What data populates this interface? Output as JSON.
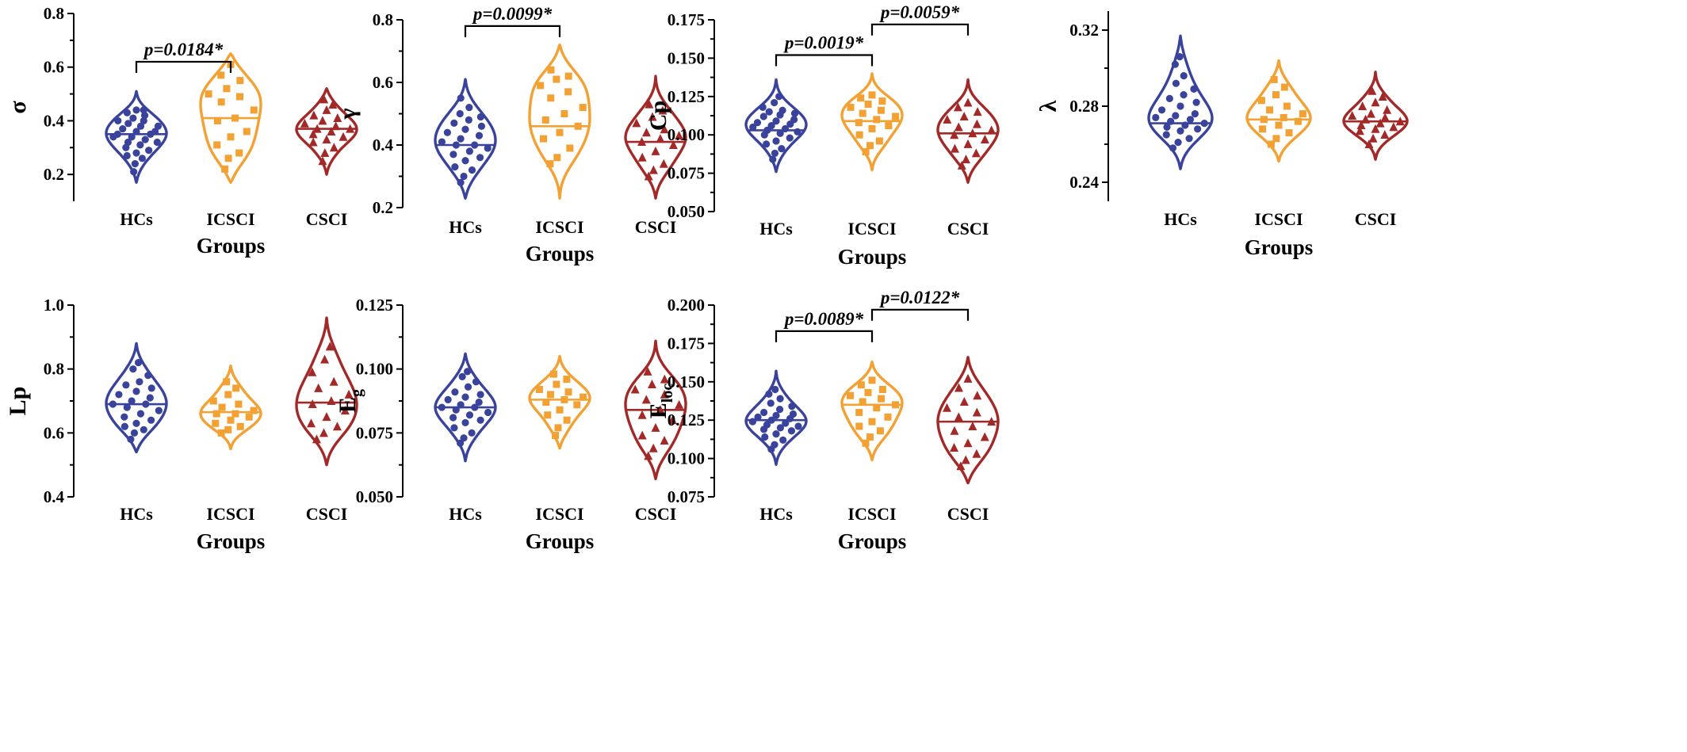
{
  "colors": {
    "HCs": "#39439b",
    "ICSCI": "#f2a132",
    "CSCI": "#a32828"
  },
  "markers": {
    "HCs": "circle",
    "ICSCI": "square",
    "CSCI": "triangle"
  },
  "chart_data": [
    {
      "id": "sigma",
      "type": "violin",
      "ylabel": "σ",
      "xlabel": "Groups",
      "categories": [
        "HCs",
        "ICSCI",
        "CSCI"
      ],
      "ylim": [
        0.1,
        0.8
      ],
      "yticks": [
        "0.2",
        "0.4",
        "0.6",
        "0.8"
      ],
      "medians": [
        0.35,
        0.41,
        0.37
      ],
      "ranges": [
        [
          0.17,
          0.51
        ],
        [
          0.17,
          0.65
        ],
        [
          0.2,
          0.52
        ]
      ],
      "series": [
        {
          "name": "HCs",
          "values": [
            0.21,
            0.24,
            0.26,
            0.27,
            0.28,
            0.29,
            0.3,
            0.31,
            0.32,
            0.32,
            0.33,
            0.34,
            0.34,
            0.35,
            0.35,
            0.36,
            0.36,
            0.37,
            0.38,
            0.38,
            0.39,
            0.4,
            0.4,
            0.41,
            0.42,
            0.43,
            0.44,
            0.44
          ]
        },
        {
          "name": "ICSCI",
          "values": [
            0.22,
            0.26,
            0.28,
            0.31,
            0.34,
            0.36,
            0.4,
            0.41,
            0.44,
            0.47,
            0.49,
            0.5,
            0.52,
            0.55,
            0.57,
            0.61
          ]
        },
        {
          "name": "CSCI",
          "values": [
            0.25,
            0.28,
            0.3,
            0.32,
            0.33,
            0.34,
            0.35,
            0.36,
            0.37,
            0.37,
            0.38,
            0.39,
            0.4,
            0.41,
            0.42,
            0.44,
            0.46,
            0.48
          ]
        }
      ],
      "annotations": [
        {
          "from": 0,
          "to": 1,
          "y": 0.62,
          "text": "p=0.0184*"
        }
      ]
    },
    {
      "id": "gamma",
      "type": "violin",
      "ylabel": "γ",
      "xlabel": "Groups",
      "categories": [
        "HCs",
        "ICSCI",
        "CSCI"
      ],
      "ylim": [
        0.2,
        0.8
      ],
      "yticks": [
        "0.2",
        "0.4",
        "0.6",
        "0.8"
      ],
      "medians": [
        0.4,
        0.46,
        0.41
      ],
      "ranges": [
        [
          0.23,
          0.61
        ],
        [
          0.23,
          0.72
        ],
        [
          0.23,
          0.62
        ]
      ],
      "series": [
        {
          "name": "HCs",
          "values": [
            0.28,
            0.3,
            0.32,
            0.33,
            0.35,
            0.36,
            0.37,
            0.38,
            0.39,
            0.4,
            0.4,
            0.41,
            0.42,
            0.43,
            0.44,
            0.45,
            0.46,
            0.47,
            0.48,
            0.49,
            0.5,
            0.52,
            0.55
          ]
        },
        {
          "name": "ICSCI",
          "values": [
            0.34,
            0.36,
            0.39,
            0.42,
            0.44,
            0.46,
            0.48,
            0.5,
            0.52,
            0.55,
            0.57,
            0.59,
            0.61,
            0.62,
            0.64
          ]
        },
        {
          "name": "CSCI",
          "values": [
            0.3,
            0.32,
            0.34,
            0.36,
            0.38,
            0.4,
            0.41,
            0.42,
            0.43,
            0.44,
            0.45,
            0.47,
            0.49,
            0.51,
            0.53
          ]
        }
      ],
      "annotations": [
        {
          "from": 0,
          "to": 1,
          "y": 0.78,
          "text": "p=0.0099*"
        }
      ]
    },
    {
      "id": "cp",
      "type": "violin",
      "ylabel": "Cp",
      "xlabel": "Groups",
      "categories": [
        "HCs",
        "ICSCI",
        "CSCI"
      ],
      "ylim": [
        0.05,
        0.175
      ],
      "yticks": [
        "0.050",
        "0.075",
        "0.100",
        "0.125",
        "0.150",
        "0.175"
      ],
      "medians": [
        0.103,
        0.109,
        0.101
      ],
      "ranges": [
        [
          0.076,
          0.136
        ],
        [
          0.077,
          0.14
        ],
        [
          0.069,
          0.136
        ]
      ],
      "series": [
        {
          "name": "HCs",
          "values": [
            0.084,
            0.088,
            0.091,
            0.094,
            0.096,
            0.098,
            0.1,
            0.101,
            0.102,
            0.103,
            0.104,
            0.105,
            0.106,
            0.107,
            0.108,
            0.109,
            0.11,
            0.112,
            0.113,
            0.114,
            0.115,
            0.116,
            0.118,
            0.121,
            0.125
          ]
        },
        {
          "name": "ICSCI",
          "values": [
            0.089,
            0.093,
            0.096,
            0.1,
            0.104,
            0.106,
            0.108,
            0.11,
            0.112,
            0.114,
            0.116,
            0.118,
            0.12,
            0.122,
            0.124,
            0.126
          ]
        },
        {
          "name": "CSCI",
          "values": [
            0.08,
            0.084,
            0.088,
            0.091,
            0.094,
            0.097,
            0.1,
            0.101,
            0.103,
            0.105,
            0.107,
            0.11,
            0.112,
            0.115,
            0.118,
            0.121
          ]
        }
      ],
      "annotations": [
        {
          "from": 0,
          "to": 1,
          "y": 0.152,
          "text": "p=0.0019*"
        },
        {
          "from": 1,
          "to": 2,
          "y": 0.172,
          "text": "p=0.0059*"
        }
      ]
    },
    {
      "id": "lambda",
      "type": "violin",
      "ylabel": "λ",
      "xlabel": "Groups",
      "categories": [
        "HCs",
        "ICSCI",
        "CSCI"
      ],
      "ylim": [
        0.23,
        0.33
      ],
      "yticks": [
        "0.24",
        "0.28",
        "0.32"
      ],
      "medians": [
        0.271,
        0.273,
        0.272
      ],
      "ranges": [
        [
          0.247,
          0.317
        ],
        [
          0.251,
          0.304
        ],
        [
          0.252,
          0.298
        ]
      ],
      "series": [
        {
          "name": "HCs",
          "values": [
            0.258,
            0.261,
            0.263,
            0.265,
            0.267,
            0.268,
            0.269,
            0.27,
            0.271,
            0.272,
            0.273,
            0.274,
            0.275,
            0.276,
            0.278,
            0.28,
            0.282,
            0.284,
            0.286,
            0.289,
            0.292,
            0.296,
            0.302,
            0.306
          ]
        },
        {
          "name": "ICSCI",
          "values": [
            0.26,
            0.263,
            0.266,
            0.268,
            0.27,
            0.272,
            0.273,
            0.274,
            0.276,
            0.278,
            0.28,
            0.283,
            0.286,
            0.29,
            0.294
          ]
        },
        {
          "name": "CSCI",
          "values": [
            0.26,
            0.263,
            0.265,
            0.267,
            0.268,
            0.269,
            0.27,
            0.271,
            0.272,
            0.273,
            0.274,
            0.275,
            0.276,
            0.278,
            0.28,
            0.282,
            0.285,
            0.288
          ]
        }
      ],
      "annotations": []
    },
    {
      "id": "lp",
      "type": "violin",
      "ylabel": "Lp",
      "xlabel": "Groups",
      "categories": [
        "HCs",
        "ICSCI",
        "CSCI"
      ],
      "ylim": [
        0.4,
        1.0
      ],
      "yticks": [
        "0.4",
        "0.6",
        "0.8",
        "1.0"
      ],
      "medians": [
        0.69,
        0.665,
        0.695
      ],
      "ranges": [
        [
          0.54,
          0.88
        ],
        [
          0.55,
          0.81
        ],
        [
          0.5,
          0.96
        ]
      ],
      "series": [
        {
          "name": "HCs",
          "values": [
            0.58,
            0.6,
            0.61,
            0.62,
            0.63,
            0.64,
            0.65,
            0.66,
            0.67,
            0.68,
            0.69,
            0.69,
            0.7,
            0.71,
            0.72,
            0.73,
            0.74,
            0.75,
            0.76,
            0.78,
            0.8,
            0.82
          ]
        },
        {
          "name": "ICSCI",
          "values": [
            0.6,
            0.61,
            0.62,
            0.63,
            0.64,
            0.65,
            0.66,
            0.66,
            0.67,
            0.68,
            0.69,
            0.7,
            0.72,
            0.74,
            0.76
          ]
        },
        {
          "name": "CSCI",
          "values": [
            0.58,
            0.6,
            0.62,
            0.63,
            0.65,
            0.67,
            0.69,
            0.7,
            0.72,
            0.74,
            0.76,
            0.79,
            0.83,
            0.87
          ]
        }
      ],
      "annotations": []
    },
    {
      "id": "eg",
      "type": "violin",
      "ylabel": "E",
      "ylabel_sub": "g",
      "xlabel": "Groups",
      "categories": [
        "HCs",
        "ICSCI",
        "CSCI"
      ],
      "ylim": [
        0.05,
        0.125
      ],
      "yticks": [
        "0.050",
        "0.075",
        "0.100",
        "0.125"
      ],
      "medians": [
        0.085,
        0.088,
        0.084
      ],
      "ranges": [
        [
          0.064,
          0.106
        ],
        [
          0.069,
          0.105
        ],
        [
          0.057,
          0.111
        ]
      ],
      "series": [
        {
          "name": "HCs",
          "values": [
            0.071,
            0.073,
            0.075,
            0.077,
            0.079,
            0.08,
            0.081,
            0.082,
            0.083,
            0.084,
            0.085,
            0.085,
            0.086,
            0.087,
            0.088,
            0.089,
            0.09,
            0.091,
            0.093,
            0.095,
            0.097,
            0.099
          ]
        },
        {
          "name": "ICSCI",
          "values": [
            0.074,
            0.077,
            0.08,
            0.082,
            0.084,
            0.086,
            0.087,
            0.088,
            0.089,
            0.09,
            0.091,
            0.092,
            0.094,
            0.096,
            0.098
          ]
        },
        {
          "name": "CSCI",
          "values": [
            0.066,
            0.069,
            0.072,
            0.074,
            0.077,
            0.08,
            0.082,
            0.084,
            0.086,
            0.088,
            0.09,
            0.092,
            0.094,
            0.096,
            0.099
          ]
        }
      ],
      "annotations": []
    },
    {
      "id": "eloc",
      "type": "violin",
      "ylabel": "E",
      "ylabel_sub": "loc",
      "xlabel": "Groups",
      "categories": [
        "HCs",
        "ICSCI",
        "CSCI"
      ],
      "ylim": [
        0.075,
        0.2
      ],
      "yticks": [
        "0.075",
        "0.100",
        "0.125",
        "0.150",
        "0.175",
        "0.200"
      ],
      "medians": [
        0.125,
        0.135,
        0.124
      ],
      "ranges": [
        [
          0.096,
          0.157
        ],
        [
          0.099,
          0.163
        ],
        [
          0.084,
          0.166
        ]
      ],
      "series": [
        {
          "name": "HCs",
          "values": [
            0.106,
            0.109,
            0.112,
            0.114,
            0.116,
            0.118,
            0.119,
            0.12,
            0.121,
            0.122,
            0.123,
            0.124,
            0.125,
            0.126,
            0.127,
            0.128,
            0.129,
            0.13,
            0.132,
            0.134,
            0.136,
            0.139,
            0.142,
            0.145
          ]
        },
        {
          "name": "ICSCI",
          "values": [
            0.11,
            0.114,
            0.118,
            0.121,
            0.124,
            0.127,
            0.13,
            0.133,
            0.135,
            0.137,
            0.139,
            0.141,
            0.143,
            0.145,
            0.148,
            0.151
          ]
        },
        {
          "name": "CSCI",
          "values": [
            0.095,
            0.099,
            0.103,
            0.107,
            0.11,
            0.114,
            0.118,
            0.121,
            0.124,
            0.127,
            0.13,
            0.133,
            0.137,
            0.141,
            0.146,
            0.152
          ]
        }
      ],
      "annotations": [
        {
          "from": 0,
          "to": 1,
          "y": 0.183,
          "text": "p=0.0089*"
        },
        {
          "from": 1,
          "to": 2,
          "y": 0.197,
          "text": "p=0.0122*"
        }
      ]
    }
  ]
}
